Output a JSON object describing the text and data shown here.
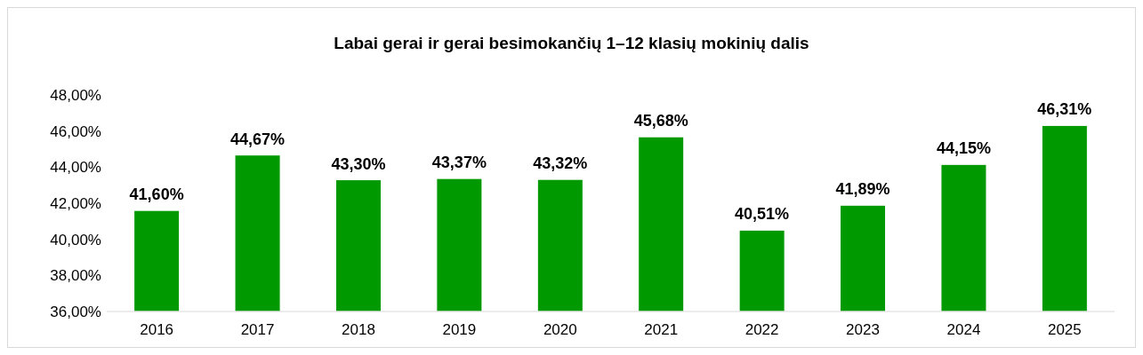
{
  "chart_data": {
    "type": "bar",
    "title": "Labai gerai ir gerai besimokančių 1–12 klasių mokinių dalis",
    "categories": [
      "2016",
      "2017",
      "2018",
      "2019",
      "2020",
      "2021",
      "2022",
      "2023",
      "2024",
      "2025"
    ],
    "values": [
      41.6,
      44.67,
      43.3,
      43.37,
      43.32,
      45.68,
      40.51,
      41.89,
      44.15,
      46.31
    ],
    "value_labels": [
      "41,60%",
      "44,67%",
      "43,30%",
      "43,37%",
      "43,32%",
      "45,68%",
      "40,51%",
      "41,89%",
      "44,15%",
      "46,31%"
    ],
    "color": "#009900",
    "ylim": [
      36,
      48
    ],
    "yticks": [
      {
        "value": 36,
        "label": "36,00%"
      },
      {
        "value": 38,
        "label": "38,00%"
      },
      {
        "value": 40,
        "label": "40,00%"
      },
      {
        "value": 42,
        "label": "42,00%"
      },
      {
        "value": 44,
        "label": "44,00%"
      },
      {
        "value": 46,
        "label": "46,00%"
      },
      {
        "value": 48,
        "label": "48,00%"
      }
    ],
    "grid": false
  }
}
